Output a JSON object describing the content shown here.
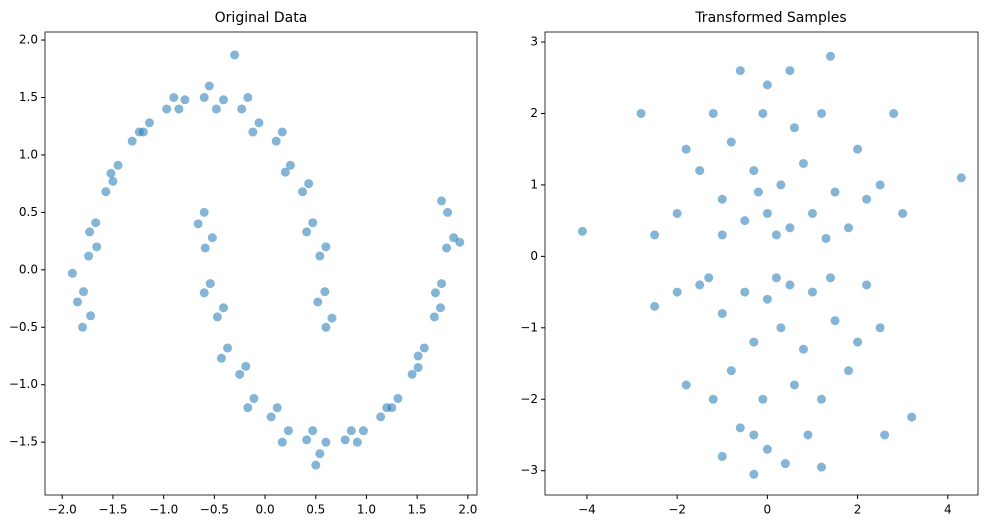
{
  "chart_data": [
    {
      "type": "scatter",
      "title": "Original Data",
      "color": "#1f77b4",
      "alpha": 0.55,
      "xlim": [
        -2.17,
        2.09
      ],
      "ylim": [
        -1.96,
        2.07
      ],
      "xticks": [
        {
          "value": -2.0,
          "label": "−2.0"
        },
        {
          "value": -1.5,
          "label": "−1.5"
        },
        {
          "value": -1.0,
          "label": "−1.0"
        },
        {
          "value": -0.5,
          "label": "−0.5"
        },
        {
          "value": 0,
          "label": "0.0"
        },
        {
          "value": 0.5,
          "label": "0.5"
        },
        {
          "value": 1.0,
          "label": "1.0"
        },
        {
          "value": 1.5,
          "label": "1.5"
        },
        {
          "value": 2.0,
          "label": "2.0"
        }
      ],
      "yticks": [
        {
          "value": -1.5,
          "label": "−1.5"
        },
        {
          "value": -1.0,
          "label": "−1.0"
        },
        {
          "value": -0.5,
          "label": "−0.5"
        },
        {
          "value": 0,
          "label": "0.0"
        },
        {
          "value": 0.5,
          "label": "0.5"
        },
        {
          "value": 1.0,
          "label": "1.0"
        },
        {
          "value": 1.5,
          "label": "1.5"
        },
        {
          "value": 2.0,
          "label": "2.0"
        }
      ],
      "x": [
        -1.8,
        -1.79,
        -1.74,
        -1.67,
        -1.57,
        -1.45,
        -1.31,
        -1.14,
        -0.97,
        -0.79,
        -0.6,
        -0.41,
        -0.23,
        -0.06,
        0.11,
        0.25,
        0.37,
        0.47,
        0.54,
        0.59,
        0.6,
        -1.72,
        -1.85,
        -1.66,
        -1.73,
        -1.5,
        -1.52,
        -1.24,
        -1.2,
        -0.9,
        -0.85,
        -0.55,
        -0.48,
        -0.17,
        -0.12,
        0.17,
        0.2,
        0.43,
        0.41,
        0.6,
        0.52,
        0.66,
        -0.6,
        -0.59,
        -0.54,
        -0.47,
        -0.37,
        -0.25,
        -0.11,
        0.06,
        0.23,
        0.41,
        0.6,
        0.79,
        0.97,
        1.14,
        1.31,
        1.45,
        1.57,
        1.67,
        1.74,
        1.79,
        1.8,
        -0.66,
        -0.52,
        -0.6,
        -0.41,
        -0.43,
        -0.19,
        -0.17,
        0.12,
        0.17,
        0.47,
        0.54,
        0.85,
        0.91,
        1.2,
        1.25,
        1.51,
        1.51,
        1.73,
        1.68,
        1.86,
        1.74,
        -1.9,
        -0.3,
        1.92,
        0.5
      ],
      "y": [
        -0.5,
        -0.19,
        0.12,
        0.41,
        0.68,
        0.91,
        1.12,
        1.28,
        1.4,
        1.48,
        1.5,
        1.48,
        1.4,
        1.28,
        1.12,
        0.91,
        0.68,
        0.41,
        0.12,
        -0.19,
        -0.5,
        -0.4,
        -0.28,
        0.2,
        0.33,
        0.77,
        0.84,
        1.2,
        1.2,
        1.5,
        1.4,
        1.6,
        1.4,
        1.5,
        1.2,
        1.2,
        0.85,
        0.75,
        0.33,
        0.2,
        -0.28,
        -0.42,
        0.5,
        0.19,
        -0.12,
        -0.41,
        -0.68,
        -0.91,
        -1.12,
        -1.28,
        -1.4,
        -1.48,
        -1.5,
        -1.48,
        -1.4,
        -1.28,
        -1.12,
        -0.91,
        -0.68,
        -0.41,
        -0.12,
        0.19,
        0.5,
        0.4,
        0.28,
        -0.2,
        -0.33,
        -0.77,
        -0.84,
        -1.2,
        -1.2,
        -1.5,
        -1.4,
        -1.6,
        -1.4,
        -1.5,
        -1.2,
        -1.2,
        -0.85,
        -0.75,
        -0.33,
        -0.2,
        0.28,
        0.6,
        -0.03,
        1.87,
        0.24,
        -1.7
      ]
    },
    {
      "type": "scatter",
      "title": "Transformed Samples",
      "color": "#1f77b4",
      "alpha": 0.55,
      "xlim": [
        -4.93,
        4.67
      ],
      "ylim": [
        -3.34,
        3.14
      ],
      "xticks": [
        {
          "value": -4,
          "label": "−4"
        },
        {
          "value": -2,
          "label": "−2"
        },
        0,
        2,
        4
      ],
      "yticks": [
        {
          "value": -3,
          "label": "−3"
        },
        {
          "value": -2,
          "label": "−2"
        },
        {
          "value": -1,
          "label": "−1"
        },
        0,
        1,
        2,
        3
      ],
      "x": [
        -0.5,
        0,
        0.5,
        1,
        -1,
        -0.3,
        0.3,
        0.8,
        -1.5,
        1.5,
        -0.8,
        0.6,
        -0.1,
        1.2,
        -1.2,
        2.0,
        -2.0,
        2.5,
        -2.5,
        0.2,
        -0.2,
        1.8,
        -1.8,
        0.0,
        -0.6,
        2.8,
        -2.8,
        3.0,
        -4.1,
        4.3,
        1.4,
        0.5,
        -1.0,
        1.3,
        2.2,
        -0.5,
        0,
        0.5,
        1,
        -1,
        -0.3,
        0.3,
        0.8,
        -1.5,
        1.5,
        -0.8,
        0.6,
        -0.1,
        1.2,
        -1.2,
        2.0,
        -2.0,
        2.5,
        -0.3,
        0.2,
        -0.6,
        1.8,
        -1.8,
        0.0,
        -0.3,
        -1.0,
        3.2,
        1.2,
        2.6,
        -2.5,
        1.4,
        -1.3,
        0.9,
        0.4,
        2.2
      ],
      "y": [
        0.5,
        0.6,
        0.4,
        0.6,
        0.8,
        1.2,
        1.0,
        1.3,
        1.2,
        0.9,
        1.6,
        1.8,
        2.0,
        2.0,
        2.0,
        1.5,
        0.6,
        1.0,
        0.3,
        0.3,
        0.9,
        0.4,
        1.5,
        2.4,
        2.6,
        2.0,
        2.0,
        0.6,
        0.35,
        1.1,
        2.8,
        2.6,
        0.3,
        0.25,
        0.8,
        -0.5,
        -0.6,
        -0.4,
        -0.5,
        -0.8,
        -1.2,
        -1.0,
        -1.3,
        -0.4,
        -0.9,
        -1.6,
        -1.8,
        -2.0,
        -2.0,
        -2.0,
        -1.2,
        -0.5,
        -1.0,
        -2.5,
        -0.3,
        -2.4,
        -1.6,
        -1.8,
        -2.7,
        -3.05,
        -2.8,
        -2.25,
        -2.95,
        -2.5,
        -0.7,
        -0.3,
        -0.3,
        -2.5,
        -2.9,
        -0.4
      ]
    }
  ]
}
